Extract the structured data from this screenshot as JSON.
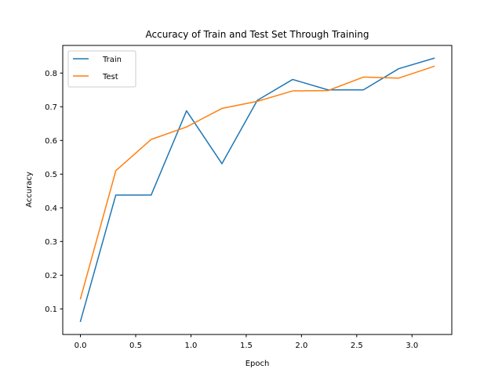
{
  "chart_data": {
    "type": "line",
    "title": "Accuracy of Train and Test Set Through Training",
    "xlabel": "Epoch",
    "ylabel": "Accuracy",
    "xlim": [
      -0.16,
      3.36
    ],
    "ylim": [
      0.024,
      0.882
    ],
    "xticks": [
      0.0,
      0.5,
      1.0,
      1.5,
      2.0,
      2.5,
      3.0
    ],
    "xtick_labels": [
      "0.0",
      "0.5",
      "1.0",
      "1.5",
      "2.0",
      "2.5",
      "3.0"
    ],
    "yticks": [
      0.1,
      0.2,
      0.3,
      0.4,
      0.5,
      0.6,
      0.7,
      0.8
    ],
    "ytick_labels": [
      "0.1",
      "0.2",
      "0.3",
      "0.4",
      "0.5",
      "0.6",
      "0.7",
      "0.8"
    ],
    "grid": false,
    "legend_position": "top-left",
    "x": [
      0.0,
      0.32,
      0.64,
      0.96,
      1.28,
      1.6,
      1.92,
      2.24,
      2.56,
      2.88,
      3.2
    ],
    "series": [
      {
        "name": "Train",
        "color": "#1f77b4",
        "values": [
          0.063,
          0.438,
          0.438,
          0.688,
          0.531,
          0.719,
          0.781,
          0.75,
          0.75,
          0.813,
          0.844
        ]
      },
      {
        "name": "Test",
        "color": "#ff7f0e",
        "values": [
          0.13,
          0.51,
          0.603,
          0.64,
          0.695,
          0.716,
          0.747,
          0.748,
          0.788,
          0.785,
          0.82
        ]
      }
    ]
  }
}
